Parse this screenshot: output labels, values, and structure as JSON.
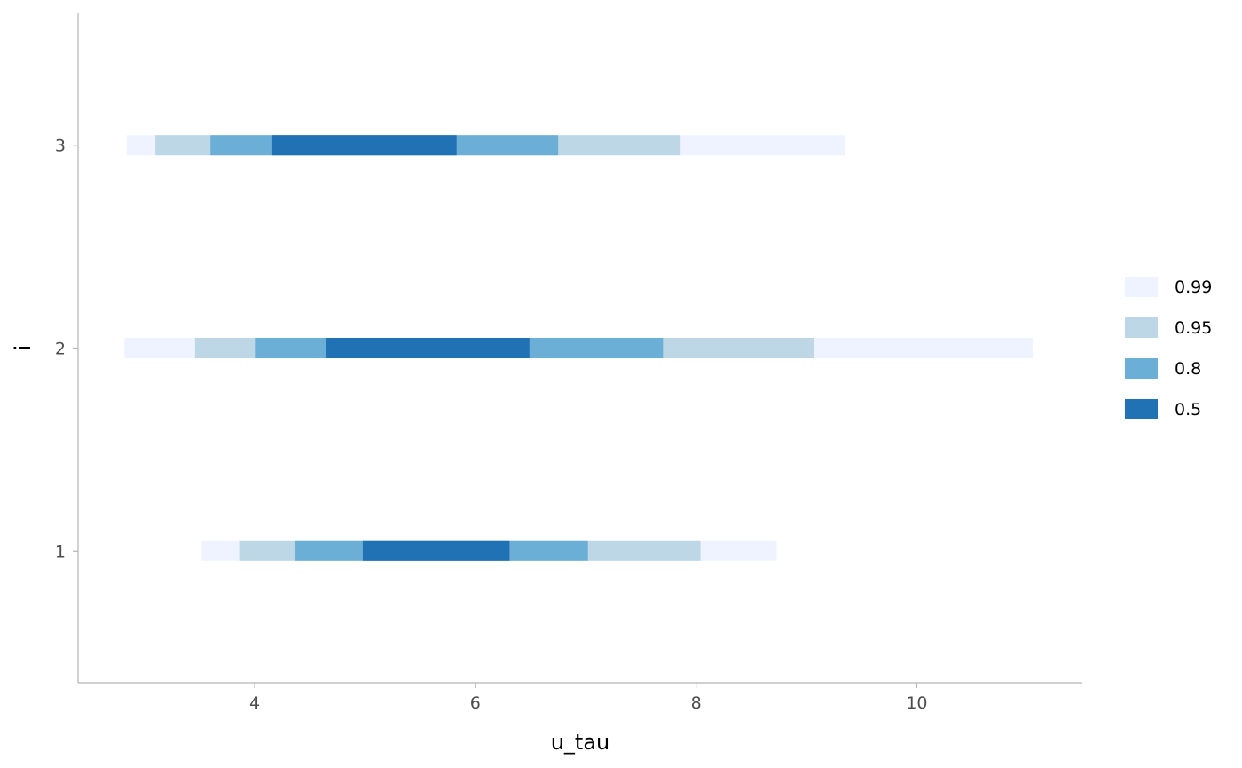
{
  "chart_data": {
    "type": "interval",
    "title": "",
    "xlabel": "u_tau",
    "ylabel": "i",
    "xlim": [
      2.4,
      11.5
    ],
    "ylim": [
      0.35,
      3.65
    ],
    "x_ticks": [
      4,
      6,
      8,
      10
    ],
    "y_ticks": [
      1,
      2,
      3
    ],
    "grid": false,
    "legend_position": "right",
    "levels": [
      {
        "name": "0.99",
        "color": "#eff3ff"
      },
      {
        "name": "0.95",
        "color": "#bdd7e7"
      },
      {
        "name": "0.8",
        "color": "#6baed6"
      },
      {
        "name": "0.5",
        "color": "#2171b5"
      }
    ],
    "series": [
      {
        "i": 1,
        "intervals": {
          "0.99": [
            3.52,
            8.73
          ],
          "0.95": [
            3.86,
            8.04
          ],
          "0.8": [
            4.37,
            7.02
          ],
          "0.5": [
            4.98,
            6.31
          ]
        }
      },
      {
        "i": 2,
        "intervals": {
          "0.99": [
            2.82,
            11.05
          ],
          "0.95": [
            3.46,
            9.07
          ],
          "0.8": [
            4.01,
            7.7
          ],
          "0.5": [
            4.65,
            6.49
          ]
        }
      },
      {
        "i": 3,
        "intervals": {
          "0.99": [
            2.84,
            9.35
          ],
          "0.95": [
            3.1,
            7.86
          ],
          "0.8": [
            3.6,
            6.75
          ],
          "0.5": [
            4.16,
            5.83
          ]
        }
      }
    ]
  }
}
